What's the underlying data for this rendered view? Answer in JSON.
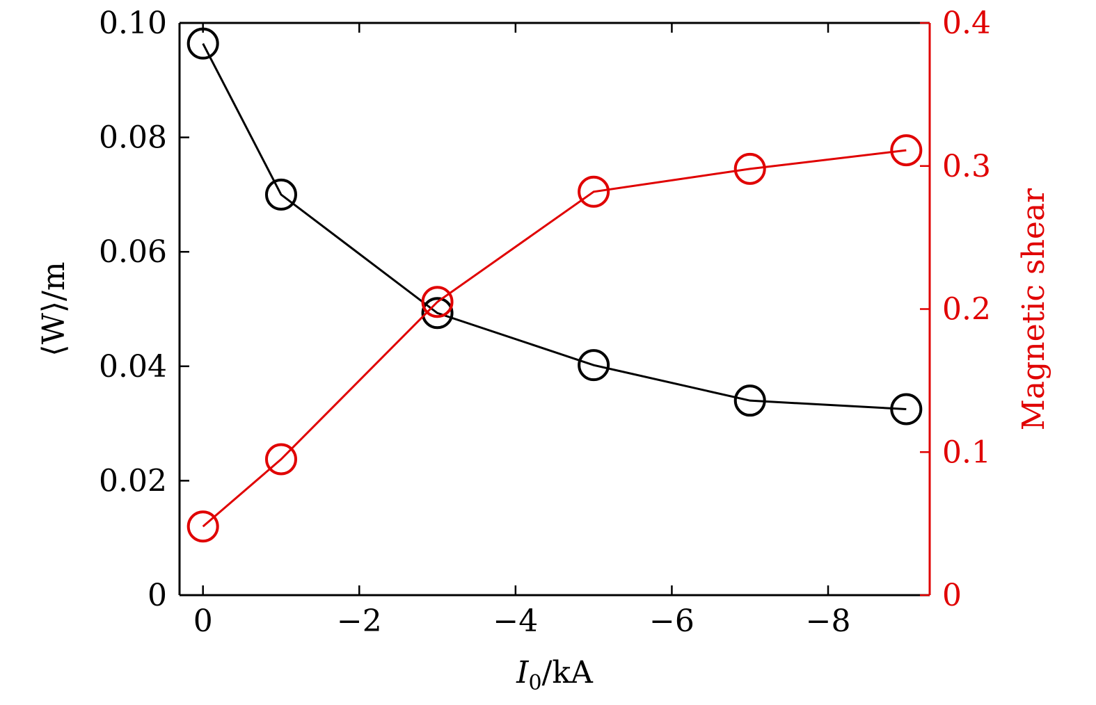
{
  "chart_data": {
    "type": "line",
    "x": [
      0,
      -1,
      -3,
      -5,
      -7,
      -9
    ],
    "xlim": [
      0.3,
      -9.3
    ],
    "xticks": [
      0,
      -2,
      -4,
      -6,
      -8
    ],
    "xtick_labels": [
      "0",
      "−2",
      "−4",
      "−6",
      "−8"
    ],
    "xlabel": {
      "main": "I",
      "sub": "0",
      "rest": "/kA"
    },
    "ylabel_left": "⟨W⟩/m",
    "ylim_left": [
      0,
      0.1
    ],
    "yticks_left": [
      0,
      0.02,
      0.04,
      0.06,
      0.08,
      0.1
    ],
    "ytick_labels_left": [
      "0",
      "0.02",
      "0.04",
      "0.06",
      "0.08",
      "0.10"
    ],
    "ylabel_right": "Magnetic shear",
    "ylim_right": [
      0,
      0.4
    ],
    "yticks_right": [
      0,
      0.1,
      0.2,
      0.3,
      0.4
    ],
    "ytick_labels_right": [
      "0",
      "0.1",
      "0.2",
      "0.3",
      "0.4"
    ],
    "series": [
      {
        "axis": "left",
        "color": "#000000",
        "marker": "open-circle",
        "values": [
          0.0964,
          0.07,
          0.0493,
          0.0402,
          0.034,
          0.0325
        ]
      },
      {
        "axis": "right",
        "color": "#e00000",
        "marker": "open-circle",
        "values": [
          0.048,
          0.095,
          0.205,
          0.282,
          0.298,
          0.311
        ]
      }
    ],
    "grid": false,
    "legend": "none"
  }
}
